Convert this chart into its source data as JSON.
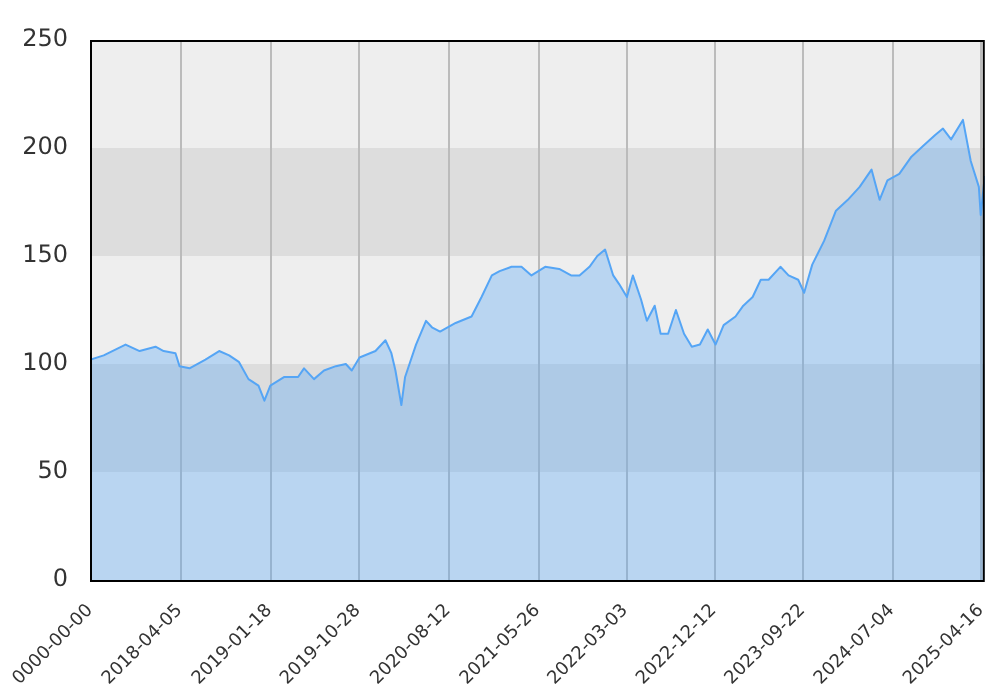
{
  "chart_data": {
    "type": "area",
    "x": [
      "2017-06-22",
      "2017-08-05",
      "2017-10-14",
      "2017-11-28",
      "2018-01-18",
      "2018-02-13",
      "2018-03-23",
      "2018-04-05",
      "2018-05-07",
      "2018-06-27",
      "2018-08-10",
      "2018-09-11",
      "2018-10-12",
      "2018-11-12",
      "2018-12-14",
      "2019-01-02",
      "2019-01-21",
      "2019-03-07",
      "2019-04-20",
      "2019-05-09",
      "2019-06-10",
      "2019-07-12",
      "2019-08-19",
      "2019-09-20",
      "2019-10-09",
      "2019-11-03",
      "2019-12-24",
      "2020-01-25",
      "2020-02-13",
      "2020-02-26",
      "2020-03-16",
      "2020-03-28",
      "2020-05-02",
      "2020-06-03",
      "2020-06-22",
      "2020-07-18",
      "2020-09-06",
      "2020-10-27",
      "2020-11-28",
      "2020-12-31",
      "2021-01-25",
      "2021-03-04",
      "2021-04-05",
      "2021-05-07",
      "2021-06-20",
      "2021-08-04",
      "2021-09-11",
      "2021-10-08",
      "2021-11-09",
      "2021-12-04",
      "2021-12-29",
      "2022-01-24",
      "2022-02-12",
      "2022-03-09",
      "2022-03-28",
      "2022-04-23",
      "2022-05-12",
      "2022-06-06",
      "2022-06-25",
      "2022-07-19",
      "2022-08-13",
      "2022-09-08",
      "2022-10-03",
      "2022-10-29",
      "2022-11-23",
      "2022-12-18",
      "2023-01-13",
      "2023-02-20",
      "2023-03-17",
      "2023-04-16",
      "2023-05-12",
      "2023-06-06",
      "2023-07-14",
      "2023-08-09",
      "2023-09-09",
      "2023-09-28",
      "2023-10-24",
      "2023-12-01",
      "2024-01-08",
      "2024-02-15",
      "2024-03-24",
      "2024-05-01",
      "2024-05-27",
      "2024-06-21",
      "2024-07-29",
      "2024-09-06",
      "2024-10-14",
      "2024-11-21",
      "2024-12-16",
      "2025-01-11",
      "2025-02-18",
      "2025-03-15",
      "2025-04-10",
      "2025-04-16",
      "2025-04-29"
    ],
    "series": [
      {
        "color": "#55a5f5",
        "values": [
          102,
          104,
          109,
          106,
          108,
          106,
          105,
          99,
          98,
          102,
          106,
          104,
          101,
          93,
          90,
          83,
          90,
          94,
          94,
          98,
          93,
          97,
          99,
          100,
          97,
          103,
          106,
          111,
          105,
          97,
          81,
          94,
          109,
          120,
          117,
          115,
          119,
          122,
          131,
          141,
          143,
          145,
          145,
          141,
          145,
          144,
          141,
          141,
          145,
          150,
          153,
          141,
          137,
          131,
          141,
          130,
          120,
          127,
          114,
          114,
          125,
          114,
          108,
          109,
          116,
          109,
          118,
          122,
          127,
          131,
          139,
          139,
          145,
          141,
          139,
          133,
          146,
          157,
          171,
          176,
          182,
          190,
          176,
          185,
          188,
          196,
          201,
          206,
          209,
          204,
          213,
          194,
          182,
          169,
          187
        ]
      }
    ],
    "xlim": [
      "2017-06-22",
      "2025-04-29"
    ],
    "xticks": [
      {
        "value": "2017-06-22",
        "label": "0000-00-00"
      },
      "2018-04-05",
      "2019-01-18",
      "2019-10-28",
      "2020-08-12",
      "2021-05-26",
      "2022-03-03",
      "2022-12-12",
      "2023-09-22",
      "2024-07-04",
      "2025-04-16"
    ],
    "ylim": [
      0,
      250
    ],
    "yticks": [
      0,
      50,
      100,
      150,
      200,
      250
    ],
    "bands": [
      {
        "axis": "y",
        "from": 50,
        "to": 100,
        "color": "#dddddd"
      },
      {
        "axis": "y",
        "from": 150,
        "to": 200,
        "color": "#dddddd"
      }
    ],
    "grid": "x",
    "legend": false,
    "marker": "none",
    "line_style": "solid"
  }
}
